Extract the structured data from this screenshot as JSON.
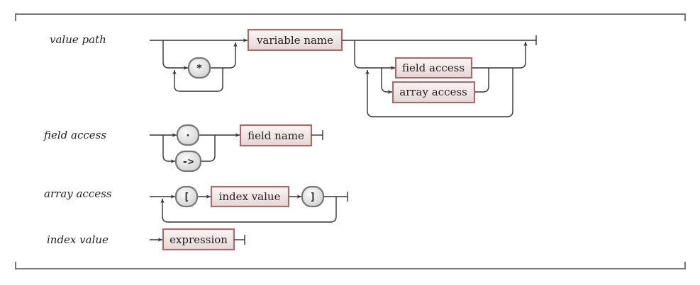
{
  "rules": [
    {
      "label": "value path",
      "terminals": [
        "*"
      ],
      "nonterminals": [
        "variable name",
        "field access",
        "array access"
      ]
    },
    {
      "label": "field access",
      "terminals": [
        "·",
        "->"
      ],
      "nonterminals": [
        "field name"
      ]
    },
    {
      "label": "array access",
      "terminals": [
        "[",
        "]"
      ],
      "nonterminals": [
        "index value"
      ]
    },
    {
      "label": "index value",
      "terminals": [],
      "nonterminals": [
        "expression"
      ]
    }
  ]
}
